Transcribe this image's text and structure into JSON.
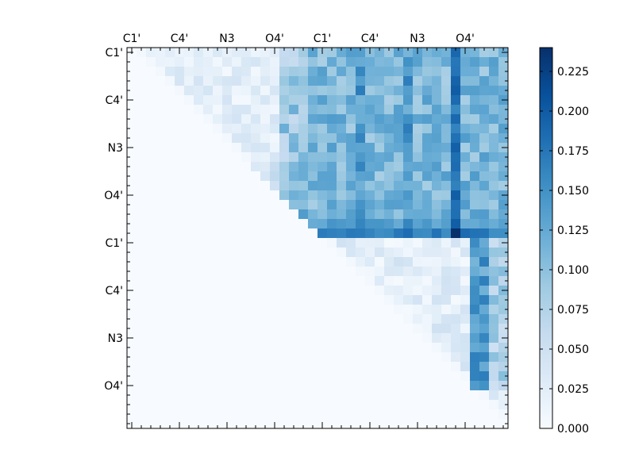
{
  "chart_data": {
    "type": "heatmap",
    "title": "",
    "xlabel": "",
    "ylabel": "",
    "n": 40,
    "x_tick_labels": [
      {
        "label": "C1'",
        "index": 0
      },
      {
        "label": "C4'",
        "index": 5
      },
      {
        "label": "N3",
        "index": 10
      },
      {
        "label": "O4'",
        "index": 15
      },
      {
        "label": "C1'",
        "index": 20
      },
      {
        "label": "C4'",
        "index": 25
      },
      {
        "label": "N3",
        "index": 30
      },
      {
        "label": "O4'",
        "index": 35
      }
    ],
    "y_tick_labels": [
      {
        "label": "C1'",
        "index": 0
      },
      {
        "label": "C4'",
        "index": 5
      },
      {
        "label": "N3",
        "index": 10
      },
      {
        "label": "O4'",
        "index": 15
      },
      {
        "label": "C1'",
        "index": 20
      },
      {
        "label": "C4'",
        "index": 25
      },
      {
        "label": "N3",
        "index": 30
      },
      {
        "label": "O4'",
        "index": 35
      }
    ],
    "colorbar": {
      "vmin": 0.0,
      "vmax": 0.24,
      "ticks": [
        "0.000",
        "0.025",
        "0.050",
        "0.075",
        "0.100",
        "0.125",
        "0.150",
        "0.175",
        "0.200",
        "0.225"
      ],
      "colormap": "Blues"
    },
    "estimated_structure": {
      "note_values": "upper-triangular matrix; lower triangle and diagonal ~0",
      "block_a_rows_0_19_cols_0_15_range": [
        0.0,
        0.05
      ],
      "block_b_rows_0_19_cols_16_39_range": [
        0.08,
        0.14
      ],
      "strong_row": 19,
      "strong_row_value": 0.17,
      "strong_col": 34,
      "strong_col_value": 0.2,
      "peak": {
        "row": 19,
        "col": 34,
        "value": 0.24
      },
      "block_c_rows_20_39_cols_20_39_range": [
        0.0,
        0.06
      ],
      "block_c_strong_cols": [
        36,
        37
      ],
      "block_c_strong_value": 0.16
    }
  }
}
